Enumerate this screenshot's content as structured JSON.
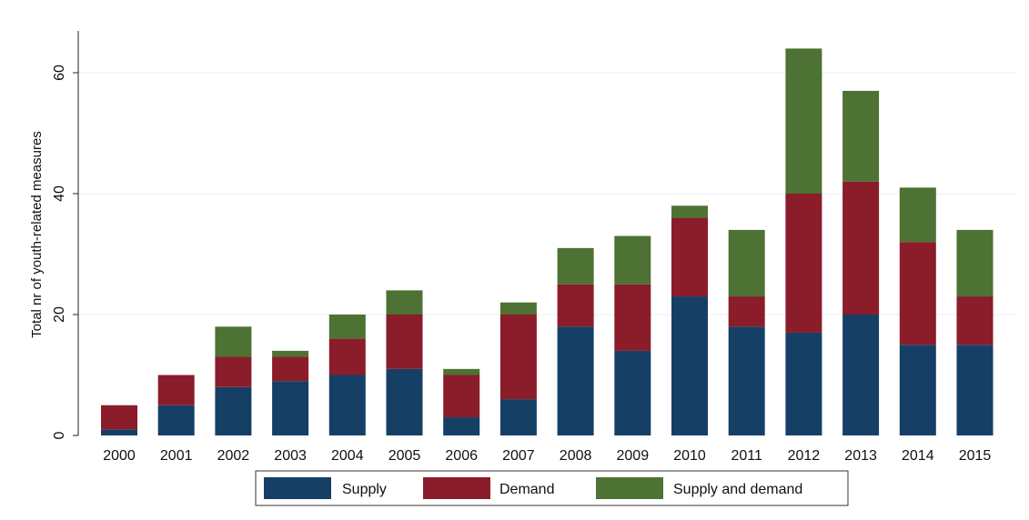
{
  "chart_data": {
    "type": "bar",
    "stacked": true,
    "title": "",
    "xlabel": "",
    "ylabel": "Total nr of youth-related measures",
    "ylim": [
      0,
      67
    ],
    "yticks": [
      0,
      20,
      40,
      60
    ],
    "grid": true,
    "legend_position": "bottom",
    "categories": [
      "2000",
      "2001",
      "2002",
      "2003",
      "2004",
      "2005",
      "2006",
      "2007",
      "2008",
      "2009",
      "2010",
      "2011",
      "2012",
      "2013",
      "2014",
      "2015"
    ],
    "series": [
      {
        "name": "Supply",
        "color": "#163f66",
        "values": [
          1,
          5,
          8,
          9,
          10,
          11,
          3,
          6,
          18,
          14,
          23,
          18,
          17,
          20,
          15,
          15
        ]
      },
      {
        "name": "Demand",
        "color": "#8b1c2a",
        "values": [
          4,
          5,
          5,
          4,
          6,
          9,
          7,
          14,
          7,
          11,
          13,
          5,
          23,
          22,
          17,
          8
        ]
      },
      {
        "name": "Supply and demand",
        "color": "#4d7233",
        "values": [
          0,
          0,
          5,
          1,
          4,
          4,
          1,
          2,
          6,
          8,
          2,
          11,
          24,
          15,
          9,
          11
        ]
      }
    ]
  }
}
